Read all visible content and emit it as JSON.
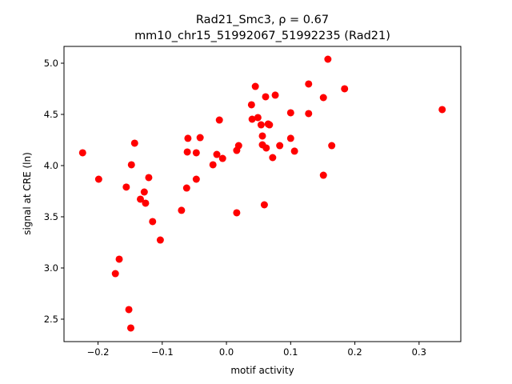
{
  "chart_data": {
    "type": "scatter",
    "title_line1": "Rad21_Smc3, ρ = 0.67",
    "title_line2": "mm10_chr15_51992067_51992235 (Rad21)",
    "xlabel": "motif activity",
    "ylabel": "signal at CRE (ln)",
    "xlim": [
      -0.253,
      0.365
    ],
    "ylim": [
      2.281,
      5.164
    ],
    "xticks": [
      -0.2,
      -0.1,
      0.0,
      0.1,
      0.2,
      0.3
    ],
    "xtick_labels": [
      "−0.2",
      "−0.1",
      "0.0",
      "0.1",
      "0.2",
      "0.3"
    ],
    "yticks": [
      2.5,
      3.0,
      3.5,
      4.0,
      4.5,
      5.0
    ],
    "ytick_labels": [
      "2.5",
      "3.0",
      "3.5",
      "4.0",
      "4.5",
      "5.0"
    ],
    "grid": false,
    "marker_color": "#ff0000",
    "points": [
      [
        -0.224,
        4.125
      ],
      [
        -0.199,
        3.867
      ],
      [
        -0.173,
        2.945
      ],
      [
        -0.167,
        3.086
      ],
      [
        -0.156,
        3.79
      ],
      [
        -0.152,
        2.594
      ],
      [
        -0.149,
        2.414
      ],
      [
        -0.148,
        4.008
      ],
      [
        -0.143,
        4.219
      ],
      [
        -0.134,
        3.672
      ],
      [
        -0.128,
        3.742
      ],
      [
        -0.126,
        3.633
      ],
      [
        -0.121,
        3.883
      ],
      [
        -0.115,
        3.453
      ],
      [
        -0.103,
        3.273
      ],
      [
        -0.07,
        3.563
      ],
      [
        -0.062,
        3.781
      ],
      [
        -0.06,
        4.266
      ],
      [
        -0.061,
        4.133
      ],
      [
        -0.047,
        3.867
      ],
      [
        -0.047,
        4.125
      ],
      [
        -0.041,
        4.273
      ],
      [
        -0.021,
        4.008
      ],
      [
        -0.015,
        4.109
      ],
      [
        -0.011,
        4.445
      ],
      [
        -0.006,
        4.07
      ],
      [
        0.016,
        3.539
      ],
      [
        0.016,
        4.148
      ],
      [
        0.019,
        4.195
      ],
      [
        0.039,
        4.594
      ],
      [
        0.04,
        4.453
      ],
      [
        0.045,
        4.773
      ],
      [
        0.049,
        4.469
      ],
      [
        0.054,
        4.398
      ],
      [
        0.056,
        4.289
      ],
      [
        0.056,
        4.203
      ],
      [
        0.059,
        3.617
      ],
      [
        0.061,
        4.672
      ],
      [
        0.062,
        4.172
      ],
      [
        0.065,
        4.406
      ],
      [
        0.067,
        4.398
      ],
      [
        0.072,
        4.078
      ],
      [
        0.076,
        4.688
      ],
      [
        0.083,
        4.195
      ],
      [
        0.1,
        4.266
      ],
      [
        0.1,
        4.516
      ],
      [
        0.106,
        4.141
      ],
      [
        0.128,
        4.797
      ],
      [
        0.128,
        4.508
      ],
      [
        0.151,
        3.906
      ],
      [
        0.151,
        4.664
      ],
      [
        0.158,
        5.039
      ],
      [
        0.164,
        4.195
      ],
      [
        0.184,
        4.75
      ],
      [
        0.336,
        4.547
      ]
    ]
  }
}
